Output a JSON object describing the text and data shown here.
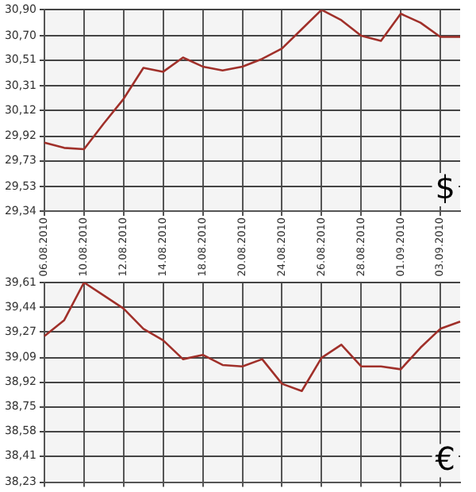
{
  "chart_data": [
    {
      "type": "line",
      "categories": [
        "06.08.2010",
        null,
        "10.08.2010",
        null,
        "12.08.2010",
        null,
        "14.08.2010",
        null,
        "18.08.2010",
        null,
        "20.08.2010",
        null,
        "24.08.2010",
        null,
        "26.08.2010",
        null,
        "28.08.2010",
        null,
        "01.09.2010",
        null,
        "03.09.2010",
        null
      ],
      "series": [
        {
          "color": "#a0302a",
          "values": [
            29.87,
            29.83,
            29.82,
            30.02,
            30.21,
            30.45,
            30.42,
            30.53,
            30.46,
            30.43,
            30.46,
            30.52,
            30.6,
            30.75,
            30.9,
            30.82,
            30.7,
            30.66,
            30.87,
            30.8,
            30.69,
            30.69
          ]
        }
      ],
      "ylim": [
        29.34,
        30.9
      ],
      "yticks": [
        {
          "value": 29.34,
          "label": "29,34"
        },
        {
          "value": 29.53,
          "label": "29,53"
        },
        {
          "value": 29.73,
          "label": "29,73"
        },
        {
          "value": 29.92,
          "label": "29,92"
        },
        {
          "value": 30.12,
          "label": "30,12"
        },
        {
          "value": 30.31,
          "label": "30,31"
        },
        {
          "value": 30.51,
          "label": "30,51"
        },
        {
          "value": 30.7,
          "label": "30,70"
        },
        {
          "value": 30.9,
          "label": "30,90"
        }
      ],
      "grid": true,
      "legend": false,
      "marker": "none",
      "annotations": [
        "$"
      ]
    },
    {
      "type": "line",
      "categories": [
        "06.08.2010",
        null,
        "10.08.2010",
        null,
        "12.08.2010",
        null,
        "14.08.2010",
        null,
        "18.08.2010",
        null,
        "20.08.2010",
        null,
        "24.08.2010",
        null,
        "26.08.2010",
        null,
        "28.08.2010",
        null,
        "01.09.2010",
        null,
        "03.09.2010",
        null
      ],
      "series": [
        {
          "color": "#a0302a",
          "values": [
            39.24,
            39.35,
            39.61,
            39.52,
            39.43,
            39.29,
            39.21,
            39.08,
            39.11,
            39.04,
            39.03,
            39.08,
            38.91,
            38.86,
            39.09,
            39.18,
            39.03,
            39.03,
            39.01,
            39.16,
            39.29,
            39.34
          ]
        }
      ],
      "ylim": [
        38.23,
        39.61
      ],
      "yticks": [
        {
          "value": 38.23,
          "label": "38,23"
        },
        {
          "value": 38.41,
          "label": "38,41"
        },
        {
          "value": 38.58,
          "label": "38,58"
        },
        {
          "value": 38.75,
          "label": "38,75"
        },
        {
          "value": 38.92,
          "label": "38,92"
        },
        {
          "value": 39.09,
          "label": "39,09"
        },
        {
          "value": 39.27,
          "label": "39,27"
        },
        {
          "value": 39.44,
          "label": "39,44"
        },
        {
          "value": 39.61,
          "label": "39,61"
        }
      ],
      "grid": true,
      "legend": false,
      "marker": "none",
      "tick_labels": "y",
      "annotations": [
        "€"
      ]
    }
  ]
}
